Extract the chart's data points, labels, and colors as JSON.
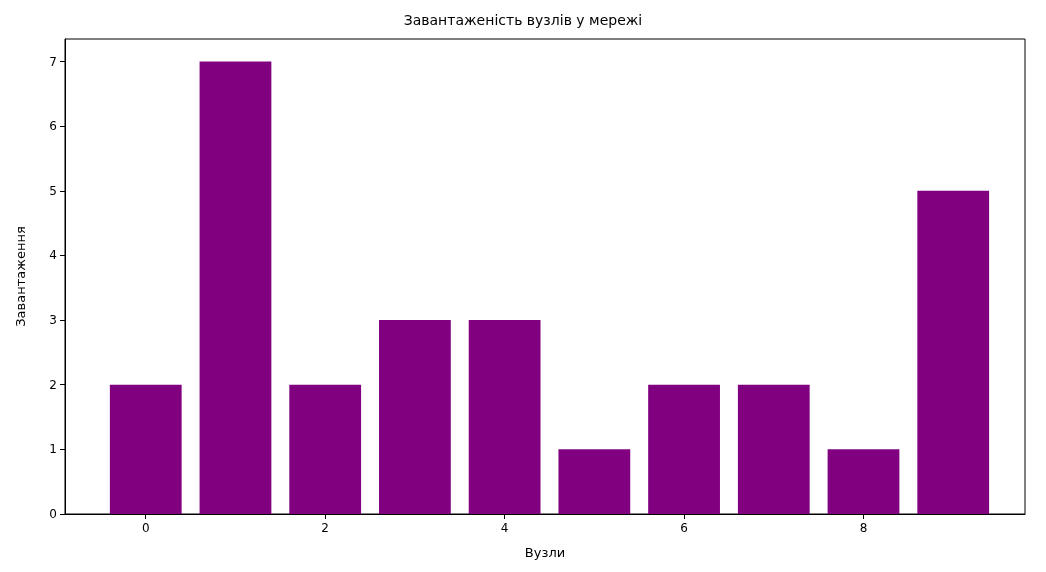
{
  "chart_data": {
    "type": "bar",
    "title": "Завантаженість вузлів у мережі",
    "xlabel": "Вузли",
    "ylabel": "Завантаження",
    "x": [
      0,
      1,
      2,
      3,
      4,
      5,
      6,
      7,
      8,
      9
    ],
    "values": [
      2,
      7,
      2,
      3,
      3,
      1,
      2,
      2,
      1,
      5
    ],
    "color": "#800080",
    "xlim": [
      -0.9,
      9.8
    ],
    "xticks": [
      0,
      2,
      4,
      6,
      8
    ],
    "ylim": [
      0,
      7.35
    ],
    "yticks": [
      0,
      1,
      2,
      3,
      4,
      5,
      6,
      7
    ],
    "grid": false
  }
}
